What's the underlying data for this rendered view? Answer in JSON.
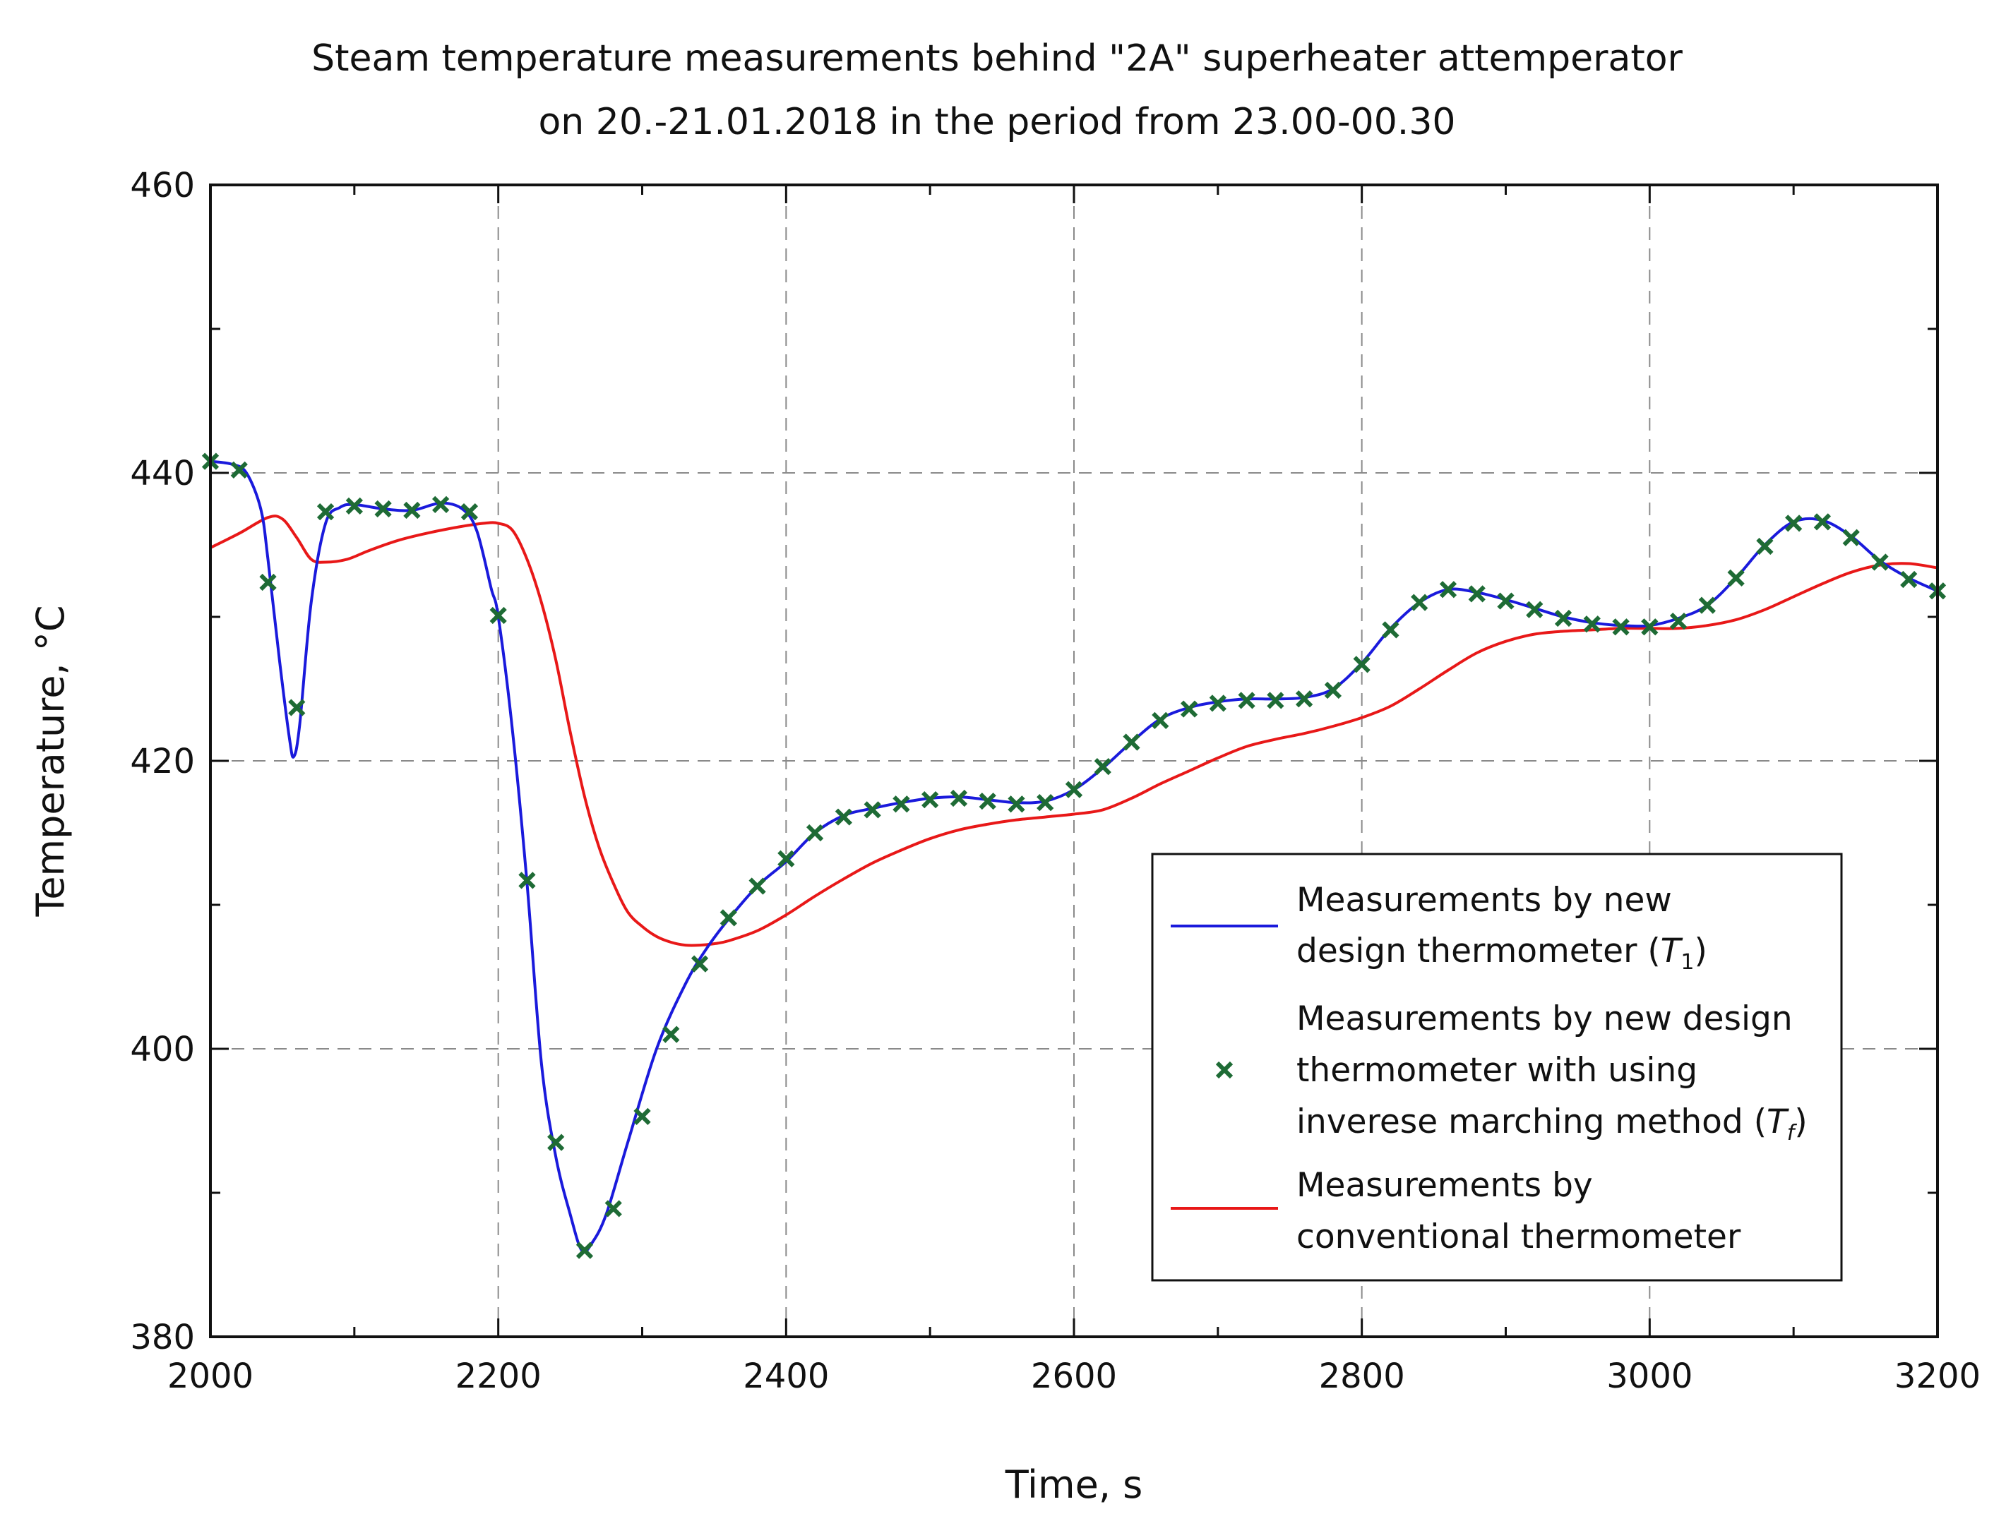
{
  "chart_data": {
    "type": "line",
    "title_line1": "Steam temperature measurements behind \"2A\" superheater attemperator",
    "title_line2": "on 20.-21.01.2018 in the period from 23.00-00.30",
    "xlabel": "Time, s",
    "ylabel": "Temperature, °C",
    "xlim": [
      2000,
      3200
    ],
    "ylim": [
      380,
      460
    ],
    "xticks": [
      2000,
      2200,
      2400,
      2600,
      2800,
      3000,
      3200
    ],
    "yticks": [
      380,
      400,
      420,
      440,
      460
    ],
    "xtick_labels": [
      "2000",
      "2200",
      "2400",
      "2600",
      "2800",
      "3000",
      "3200"
    ],
    "ytick_labels": [
      "380",
      "400",
      "420",
      "440",
      "460"
    ],
    "grid": "dashed",
    "legend_position": "bottom-right",
    "series": [
      {
        "name": "Measurements by new design thermometer (T1)",
        "legend_lines": [
          "Measurements by new",
          "design thermometer ("
        ],
        "legend_symbol": "T",
        "legend_sub": "1",
        "legend_close": ")",
        "style": "line",
        "color": "#1a1adc",
        "x": [
          2000,
          2015,
          2025,
          2035,
          2040,
          2048,
          2055,
          2058,
          2062,
          2070,
          2080,
          2090,
          2100,
          2120,
          2140,
          2160,
          2175,
          2185,
          2195,
          2200,
          2210,
          2220,
          2230,
          2240,
          2250,
          2258,
          2265,
          2275,
          2290,
          2310,
          2330,
          2345,
          2360,
          2380,
          2400,
          2420,
          2440,
          2460,
          2480,
          2500,
          2520,
          2540,
          2560,
          2580,
          2600,
          2620,
          2640,
          2660,
          2680,
          2700,
          2720,
          2740,
          2760,
          2780,
          2800,
          2820,
          2840,
          2860,
          2880,
          2900,
          2920,
          2940,
          2960,
          2980,
          3000,
          3020,
          3040,
          3060,
          3080,
          3100,
          3120,
          3140,
          3160,
          3180,
          3200
        ],
        "y": [
          440.8,
          440.6,
          440.0,
          437.5,
          434.0,
          427.0,
          421.5,
          420.3,
          422.5,
          431.0,
          436.5,
          437.6,
          437.8,
          437.5,
          437.4,
          437.9,
          437.5,
          436.0,
          432.0,
          430.0,
          422.0,
          411.5,
          399.0,
          392.5,
          388.5,
          386.0,
          386.5,
          388.5,
          393.5,
          400.0,
          404.5,
          407.0,
          409.0,
          411.3,
          413.0,
          415.0,
          416.2,
          416.7,
          417.1,
          417.4,
          417.5,
          417.3,
          417.1,
          417.2,
          418.0,
          419.5,
          421.3,
          422.9,
          423.7,
          424.1,
          424.3,
          424.3,
          424.4,
          425.0,
          426.8,
          429.2,
          431.0,
          431.9,
          431.7,
          431.2,
          430.6,
          430.0,
          429.6,
          429.4,
          429.4,
          429.9,
          430.8,
          432.7,
          435.0,
          436.6,
          436.7,
          435.6,
          433.9,
          432.7,
          431.8
        ]
      },
      {
        "name": "Measurements by new design thermometer with using inverese marching method (Tf)",
        "legend_lines": [
          "Measurements by new design",
          "thermometer with using",
          "inverese marching method ("
        ],
        "legend_symbol": "T",
        "legend_sub": "f",
        "legend_close": ")",
        "style": "markers",
        "marker": "x",
        "color": "#1e6b35",
        "x": [
          2000,
          2020,
          2040,
          2060,
          2080,
          2100,
          2120,
          2140,
          2160,
          2180,
          2200,
          2220,
          2240,
          2260,
          2280,
          2300,
          2320,
          2340,
          2360,
          2380,
          2400,
          2420,
          2440,
          2460,
          2480,
          2500,
          2520,
          2540,
          2560,
          2580,
          2600,
          2620,
          2640,
          2660,
          2680,
          2700,
          2720,
          2740,
          2760,
          2780,
          2800,
          2820,
          2840,
          2860,
          2880,
          2900,
          2920,
          2940,
          2960,
          2980,
          3000,
          3020,
          3040,
          3060,
          3080,
          3100,
          3120,
          3140,
          3160,
          3180,
          3200
        ],
        "y": [
          440.8,
          440.2,
          432.4,
          423.7,
          437.3,
          437.7,
          437.5,
          437.4,
          437.8,
          437.3,
          430.1,
          411.7,
          393.5,
          386.0,
          388.9,
          395.3,
          401.0,
          405.9,
          409.1,
          411.3,
          413.2,
          415.0,
          416.1,
          416.6,
          417.0,
          417.3,
          417.4,
          417.2,
          417.0,
          417.1,
          418.0,
          419.6,
          421.3,
          422.8,
          423.6,
          424.0,
          424.2,
          424.2,
          424.3,
          424.9,
          426.7,
          429.1,
          431.0,
          431.9,
          431.6,
          431.1,
          430.5,
          429.9,
          429.5,
          429.3,
          429.3,
          429.7,
          430.8,
          432.7,
          434.9,
          436.5,
          436.6,
          435.5,
          433.8,
          432.6,
          431.8
        ]
      },
      {
        "name": "Measurements by conventional thermometer",
        "legend_lines": [
          "Measurements by",
          "conventional thermometer"
        ],
        "style": "line",
        "color": "#e81818",
        "x": [
          2000,
          2020,
          2040,
          2050,
          2060,
          2070,
          2080,
          2095,
          2110,
          2130,
          2150,
          2170,
          2190,
          2200,
          2210,
          2220,
          2230,
          2240,
          2250,
          2260,
          2270,
          2280,
          2290,
          2300,
          2310,
          2320,
          2330,
          2340,
          2350,
          2360,
          2380,
          2400,
          2420,
          2440,
          2460,
          2480,
          2500,
          2520,
          2540,
          2560,
          2580,
          2600,
          2620,
          2640,
          2660,
          2680,
          2700,
          2720,
          2740,
          2760,
          2780,
          2800,
          2820,
          2840,
          2860,
          2880,
          2900,
          2920,
          2940,
          2960,
          2980,
          3000,
          3020,
          3040,
          3060,
          3080,
          3100,
          3120,
          3140,
          3160,
          3180,
          3200
        ],
        "y": [
          434.8,
          435.8,
          436.9,
          436.8,
          435.5,
          434.0,
          433.8,
          434.0,
          434.6,
          435.3,
          435.8,
          436.2,
          436.5,
          436.5,
          436.0,
          434.0,
          431.0,
          427.0,
          422.0,
          417.5,
          414.0,
          411.5,
          409.5,
          408.5,
          407.8,
          407.4,
          407.2,
          407.2,
          407.3,
          407.5,
          408.2,
          409.3,
          410.6,
          411.8,
          412.9,
          413.8,
          414.6,
          415.2,
          415.6,
          415.9,
          416.1,
          416.3,
          416.6,
          417.4,
          418.4,
          419.3,
          420.2,
          421.0,
          421.5,
          421.9,
          422.4,
          423.0,
          423.8,
          425.0,
          426.3,
          427.5,
          428.3,
          428.8,
          429.0,
          429.1,
          429.2,
          429.2,
          429.2,
          429.4,
          429.8,
          430.5,
          431.4,
          432.3,
          433.1,
          433.6,
          433.7,
          433.4
        ]
      }
    ]
  }
}
